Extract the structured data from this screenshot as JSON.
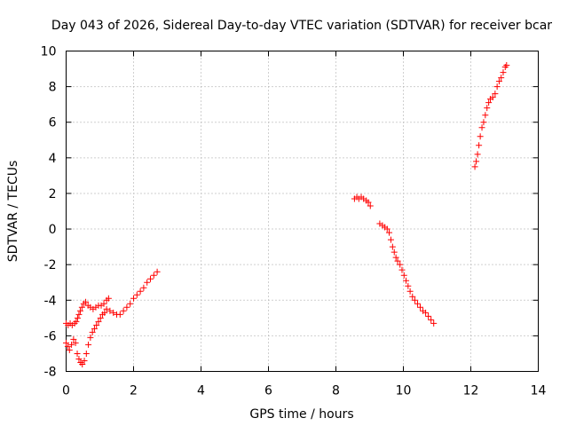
{
  "chart_data": {
    "type": "scatter",
    "title": "Day 043 of 2026, Sidereal Day-to-day VTEC variation (SDTVAR) for receiver bcar",
    "xlabel": "GPS time / hours",
    "ylabel": "SDTVAR / TECUs",
    "xlim": [
      0,
      14
    ],
    "ylim": [
      -8,
      10
    ],
    "x_ticks": [
      "0",
      "2",
      "4",
      "6",
      "8",
      "10",
      "12",
      "14"
    ],
    "y_ticks": [
      "-8",
      "-6",
      "-4",
      "-2",
      "0",
      "2",
      "4",
      "6",
      "8",
      "10"
    ],
    "grid": true,
    "marker": "plus",
    "color": "#ff0000",
    "series": [
      {
        "points": [
          [
            0.0,
            -5.3
          ],
          [
            0.06,
            -5.4
          ],
          [
            0.12,
            -5.3
          ],
          [
            0.18,
            -5.4
          ],
          [
            0.25,
            -5.3
          ],
          [
            0.3,
            -5.2
          ],
          [
            0.34,
            -5.0
          ],
          [
            0.38,
            -4.8
          ],
          [
            0.42,
            -4.6
          ],
          [
            0.47,
            -4.4
          ],
          [
            0.52,
            -4.2
          ],
          [
            0.58,
            -4.1
          ],
          [
            0.65,
            -4.3
          ],
          [
            0.72,
            -4.4
          ],
          [
            0.8,
            -4.5
          ],
          [
            0.88,
            -4.4
          ],
          [
            0.96,
            -4.3
          ],
          [
            1.04,
            -4.3
          ],
          [
            1.12,
            -4.2
          ],
          [
            1.2,
            -4.0
          ],
          [
            1.26,
            -3.9
          ],
          [
            1.2,
            -4.5
          ],
          [
            1.3,
            -4.6
          ],
          [
            1.4,
            -4.7
          ],
          [
            1.5,
            -4.8
          ],
          [
            1.6,
            -4.8
          ],
          [
            1.7,
            -4.6
          ],
          [
            1.8,
            -4.4
          ],
          [
            1.9,
            -4.2
          ],
          [
            2.0,
            -3.9
          ],
          [
            2.1,
            -3.7
          ],
          [
            2.2,
            -3.5
          ],
          [
            2.3,
            -3.3
          ],
          [
            2.4,
            -3.0
          ],
          [
            2.5,
            -2.8
          ],
          [
            2.6,
            -2.6
          ],
          [
            2.7,
            -2.4
          ],
          [
            0.0,
            -6.4
          ],
          [
            0.05,
            -6.6
          ],
          [
            0.1,
            -6.8
          ],
          [
            0.16,
            -6.5
          ],
          [
            0.22,
            -6.2
          ],
          [
            0.28,
            -6.4
          ],
          [
            0.33,
            -7.0
          ],
          [
            0.38,
            -7.3
          ],
          [
            0.43,
            -7.5
          ],
          [
            0.48,
            -7.6
          ],
          [
            0.54,
            -7.4
          ],
          [
            0.6,
            -7.0
          ],
          [
            0.66,
            -6.5
          ],
          [
            0.72,
            -6.1
          ],
          [
            0.78,
            -5.8
          ],
          [
            0.84,
            -5.6
          ],
          [
            0.9,
            -5.4
          ],
          [
            0.96,
            -5.2
          ],
          [
            1.02,
            -5.0
          ],
          [
            1.08,
            -4.8
          ],
          [
            1.14,
            -4.7
          ]
        ]
      },
      {
        "points": [
          [
            8.55,
            1.7
          ],
          [
            8.62,
            1.8
          ],
          [
            8.68,
            1.7
          ],
          [
            8.75,
            1.8
          ],
          [
            8.82,
            1.7
          ],
          [
            8.9,
            1.6
          ],
          [
            8.96,
            1.5
          ],
          [
            9.02,
            1.3
          ]
        ]
      },
      {
        "points": [
          [
            9.3,
            0.3
          ],
          [
            9.38,
            0.2
          ],
          [
            9.45,
            0.1
          ],
          [
            9.52,
            0.0
          ],
          [
            9.58,
            -0.2
          ],
          [
            9.63,
            -0.6
          ],
          [
            9.68,
            -1.0
          ],
          [
            9.73,
            -1.3
          ],
          [
            9.78,
            -1.6
          ],
          [
            9.83,
            -1.8
          ],
          [
            9.9,
            -2.0
          ],
          [
            9.96,
            -2.3
          ],
          [
            10.02,
            -2.6
          ],
          [
            10.08,
            -2.9
          ],
          [
            10.14,
            -3.2
          ],
          [
            10.2,
            -3.5
          ],
          [
            10.27,
            -3.8
          ],
          [
            10.34,
            -4.0
          ],
          [
            10.42,
            -4.2
          ],
          [
            10.5,
            -4.4
          ],
          [
            10.58,
            -4.6
          ],
          [
            10.66,
            -4.7
          ],
          [
            10.74,
            -4.9
          ],
          [
            10.82,
            -5.1
          ],
          [
            10.9,
            -5.3
          ]
        ]
      },
      {
        "points": [
          [
            12.12,
            3.5
          ],
          [
            12.16,
            3.8
          ],
          [
            12.2,
            4.2
          ],
          [
            12.24,
            4.7
          ],
          [
            12.28,
            5.2
          ],
          [
            12.33,
            5.7
          ],
          [
            12.38,
            6.0
          ],
          [
            12.43,
            6.4
          ],
          [
            12.48,
            6.8
          ],
          [
            12.53,
            7.1
          ],
          [
            12.58,
            7.3
          ],
          [
            12.65,
            7.4
          ],
          [
            12.72,
            7.6
          ],
          [
            12.78,
            8.0
          ],
          [
            12.84,
            8.3
          ],
          [
            12.9,
            8.5
          ],
          [
            12.96,
            8.8
          ],
          [
            13.02,
            9.1
          ],
          [
            13.06,
            9.2
          ]
        ]
      }
    ]
  }
}
